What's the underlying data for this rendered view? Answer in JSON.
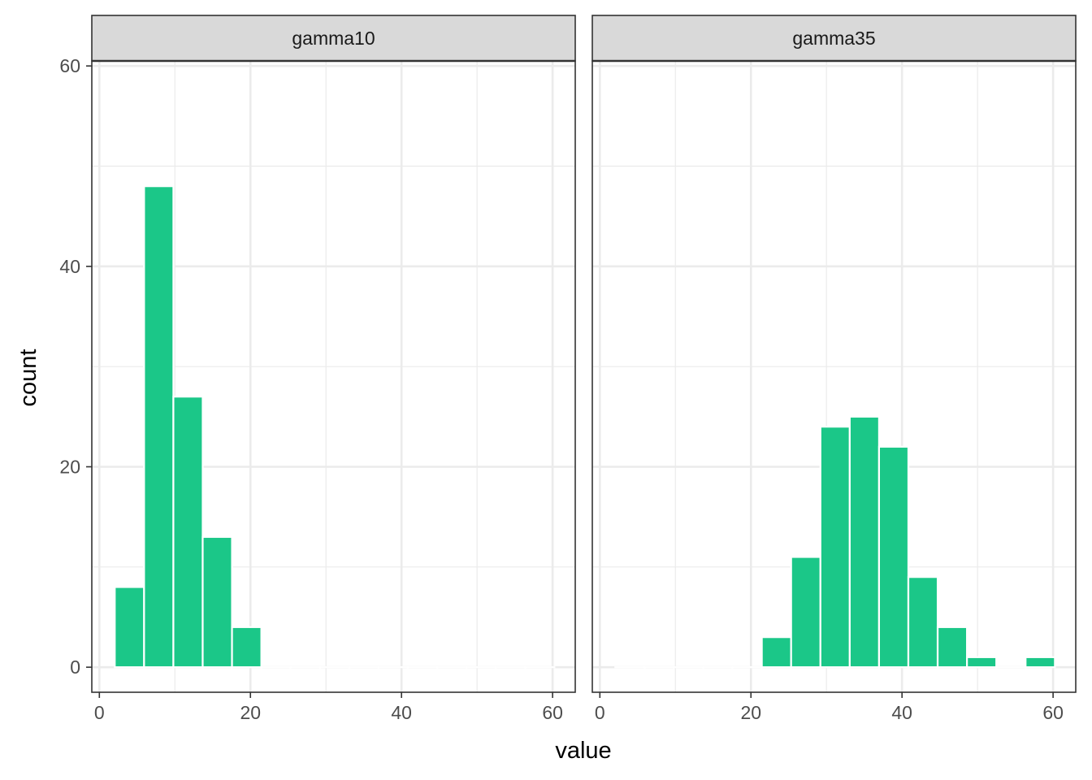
{
  "chart_data": {
    "type": "bar",
    "xlabel": "value",
    "ylabel": "count",
    "xlim": [
      -1,
      63
    ],
    "ylim": [
      -2.5,
      60.5
    ],
    "x_ticks": [
      0,
      20,
      40,
      60
    ],
    "y_ticks": [
      0,
      20,
      40,
      60
    ],
    "x_tick_labels": [
      "0",
      "20",
      "40",
      "60"
    ],
    "y_tick_labels": [
      "0",
      "20",
      "40",
      "60"
    ],
    "grid": true,
    "bin_width": 3.88,
    "bar_color": "#1bc788",
    "panels": [
      {
        "label": "gamma10",
        "bin_centers": [
          3.98,
          7.86,
          11.74,
          15.62,
          19.5,
          23.38,
          27.26,
          31.14,
          35.02,
          38.9,
          42.78,
          46.66,
          50.54,
          54.42,
          58.3
        ],
        "counts": [
          8,
          48,
          27,
          13,
          4,
          0,
          0,
          0,
          0,
          0,
          0,
          0,
          0,
          0,
          0
        ]
      },
      {
        "label": "gamma35",
        "bin_centers": [
          3.98,
          7.86,
          11.74,
          15.62,
          19.5,
          23.38,
          27.26,
          31.14,
          35.02,
          38.9,
          42.78,
          46.66,
          50.54,
          54.42,
          58.3
        ],
        "counts": [
          0,
          0,
          0,
          0,
          0,
          3,
          11,
          24,
          25,
          22,
          9,
          4,
          1,
          0,
          1
        ]
      }
    ]
  }
}
